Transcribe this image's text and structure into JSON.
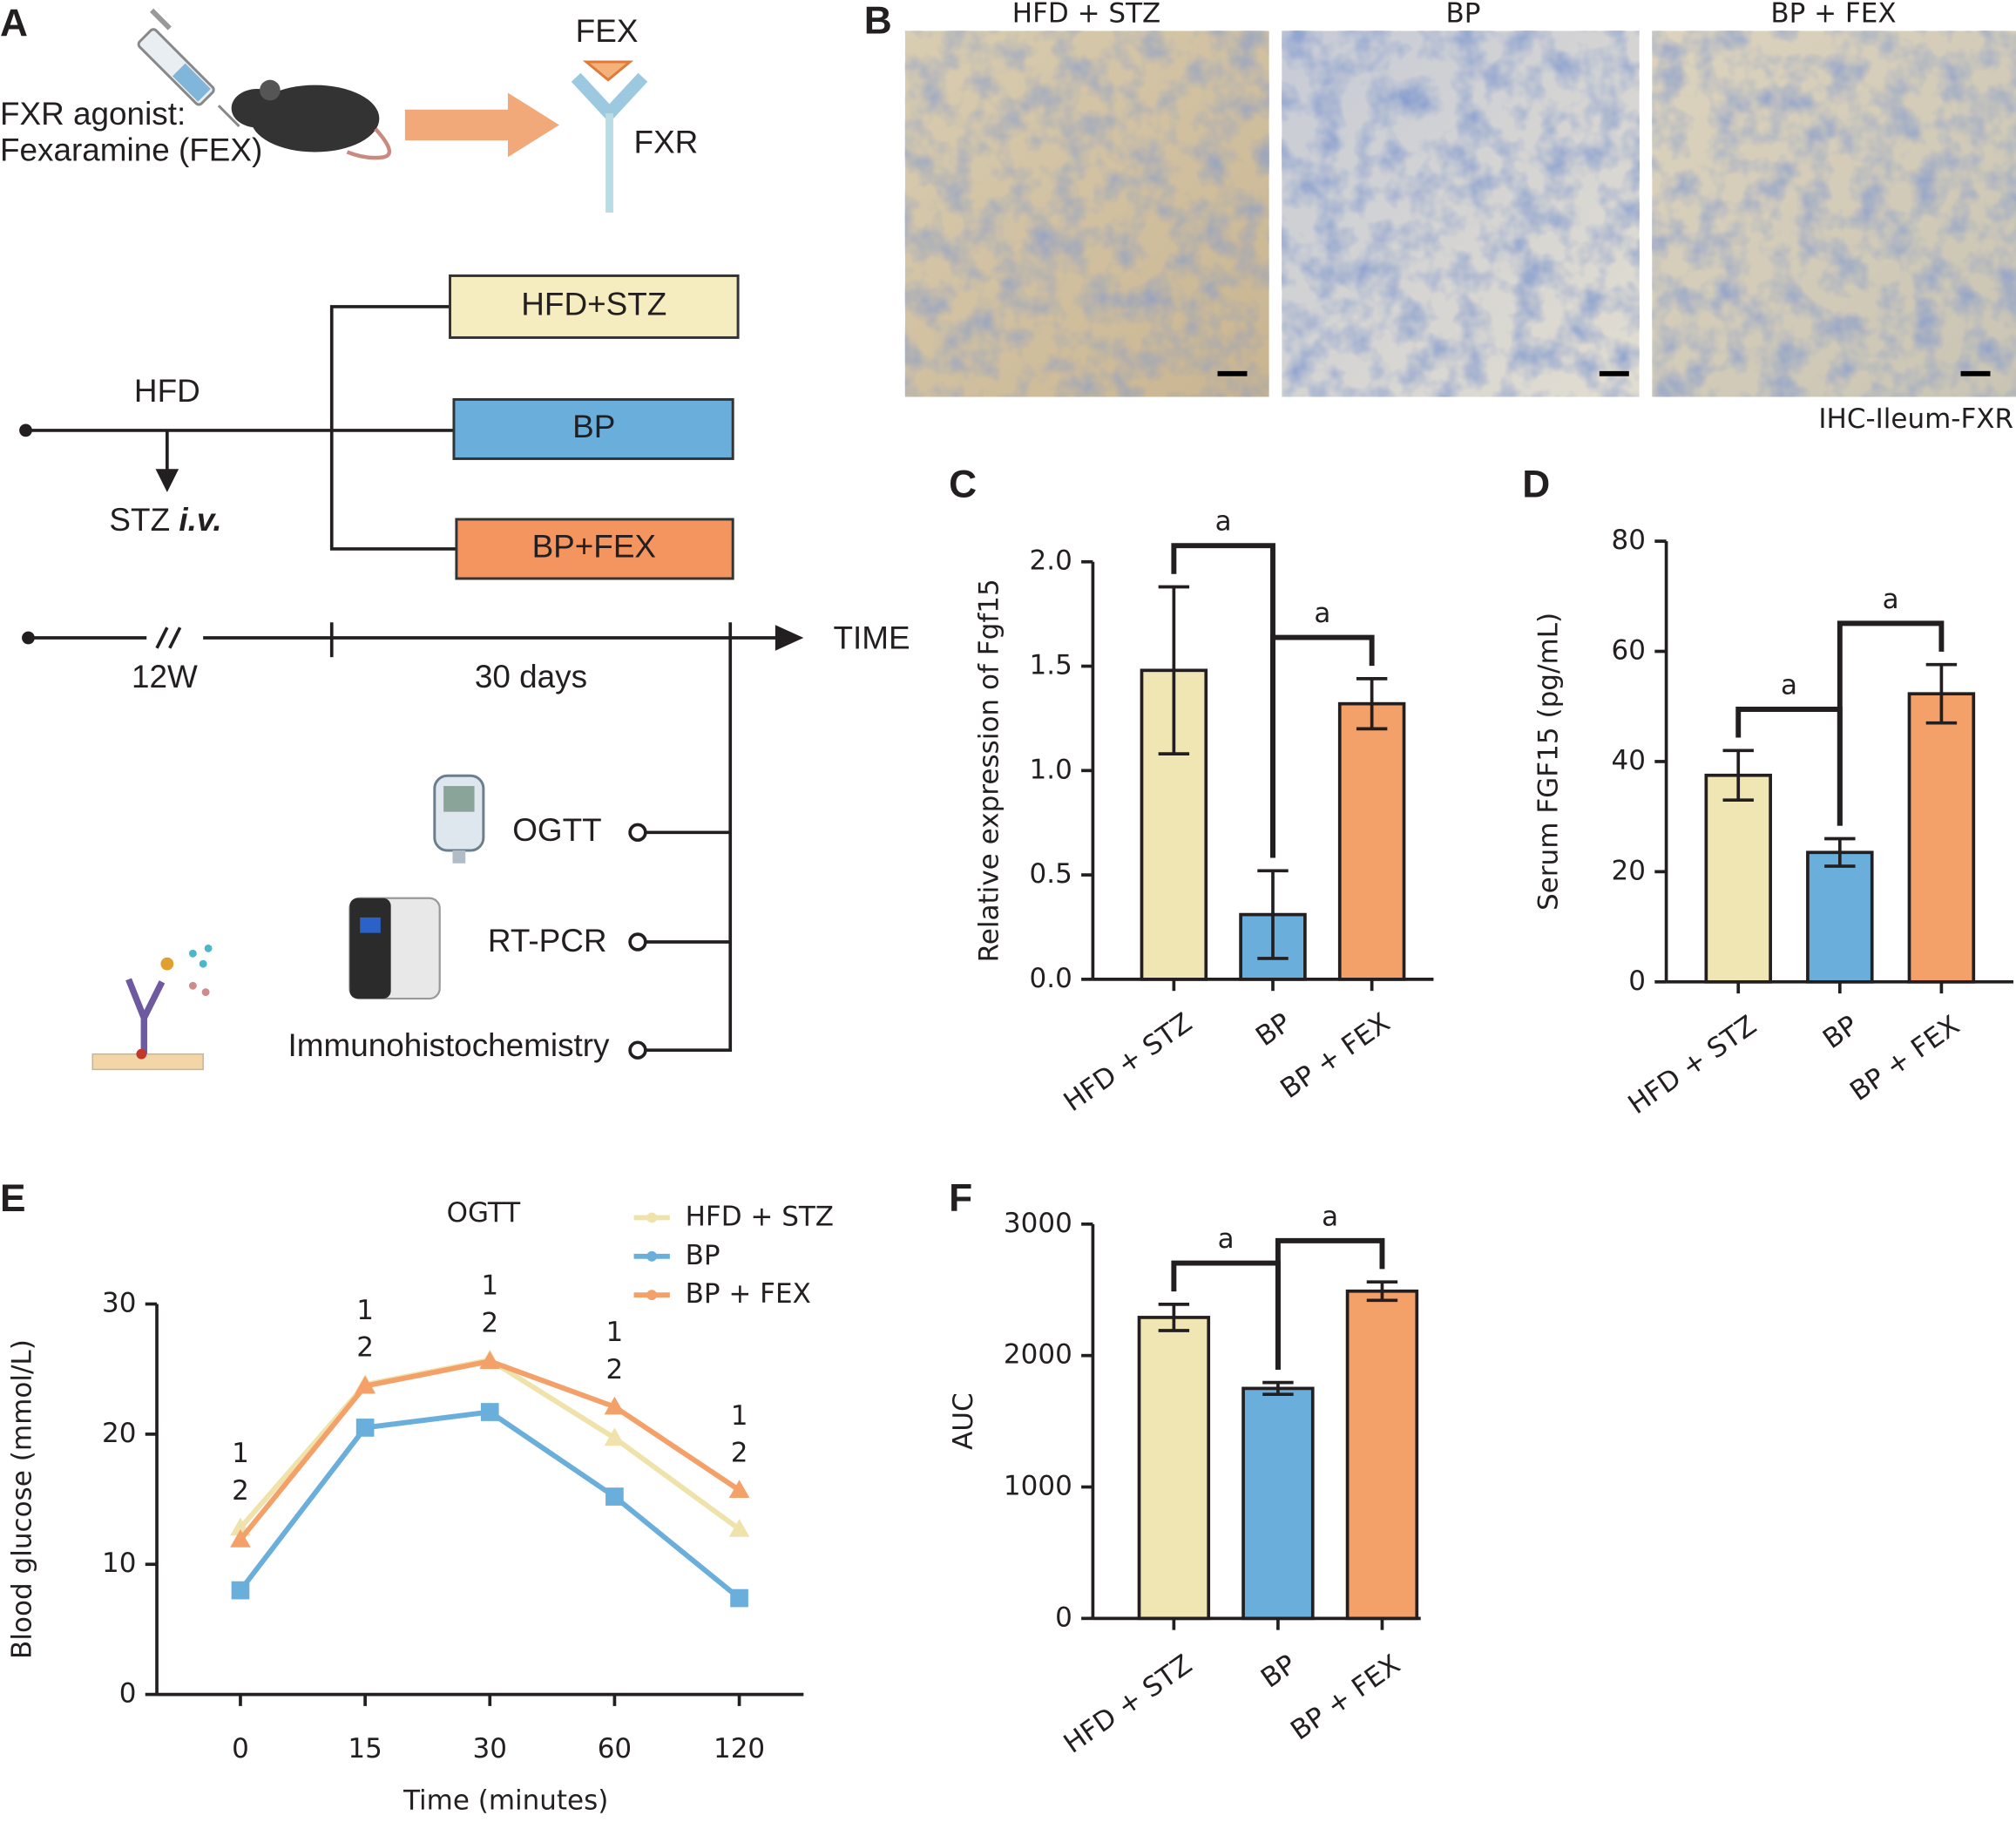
{
  "panel_labels": [
    "A",
    "B",
    "C",
    "D",
    "E",
    "F"
  ],
  "diagram": {
    "agonist": "FXR agonist:",
    "agonist_name": "Fexaramine (FEX)",
    "ligand": "FEX",
    "receptor": "FXR",
    "groups": [
      "HFD+STZ",
      "BP",
      "BP+FEX"
    ],
    "diet": "HFD",
    "injection": "STZ",
    "route": "i.v.",
    "time": "TIME",
    "period1": "12W",
    "period2": "30 days",
    "assays": [
      "OGTT",
      "RT-PCR",
      "Immunohistochemistry"
    ]
  },
  "histology": {
    "panels": [
      "HFD + STZ",
      "BP",
      "BP + FEX"
    ],
    "caption": "IHC-Ileum-FXR"
  },
  "chart_data": [
    {
      "type": "bar",
      "y_label": "Relative expression of Fgf15",
      "categories": [
        "HFD + STZ",
        "BP",
        "BP + FEX"
      ],
      "values": [
        1.48,
        0.31,
        1.32
      ],
      "errors": [
        0.4,
        0.21,
        0.12
      ],
      "colors": [
        "#efe6b4",
        "#6aaedb",
        "#f4a169"
      ],
      "ylim": [
        0,
        2
      ],
      "yticks": [
        {
          "value": 0,
          "label": "0.0"
        },
        0.5,
        {
          "value": 1,
          "label": "1.0"
        },
        1.5,
        {
          "value": 2,
          "label": "2.0"
        }
      ],
      "brackets": [
        {
          "from": 0,
          "to": 1,
          "label": "a"
        },
        {
          "from": 1,
          "to": 2,
          "label": "a"
        }
      ]
    },
    {
      "type": "bar",
      "y_label": "Serum FGF15 (pg/mL)",
      "categories": [
        "HFD + STZ",
        "BP",
        "BP + FEX"
      ],
      "values": [
        37.5,
        23.5,
        52.3
      ],
      "errors": [
        4.5,
        2.5,
        5.3
      ],
      "colors": [
        "#efe6b4",
        "#6aaedb",
        "#f4a169"
      ],
      "ylim": [
        0,
        80
      ],
      "yticks": [
        0,
        20,
        40,
        60,
        80
      ],
      "brackets": [
        {
          "from": 0,
          "to": 1,
          "label": "a"
        },
        {
          "from": 1,
          "to": 2,
          "label": "a"
        }
      ]
    },
    {
      "type": "line",
      "title": "OGTT",
      "x_label": "Time (minutes)",
      "y_label": "Blood glucose (mmol/L)",
      "categories": [
        "0",
        "15",
        "30",
        "60",
        "120"
      ],
      "ylim": [
        0,
        30
      ],
      "yticks": [
        0,
        10,
        20,
        30
      ],
      "series": [
        {
          "name": "HFD + STZ",
          "color": "#efe3ab",
          "values": [
            12.8,
            23.8,
            25.7,
            19.7,
            12.7
          ]
        },
        {
          "name": "BP",
          "color": "#6aaedb",
          "values": [
            8.0,
            20.5,
            21.7,
            15.2,
            7.4
          ]
        },
        {
          "name": "BP + FEX",
          "color": "#f4a169",
          "values": [
            11.9,
            23.7,
            25.6,
            22.1,
            15.7
          ]
        }
      ],
      "annotations": [
        {
          "index": 0,
          "labels": [
            "1",
            "2"
          ]
        },
        {
          "index": 1,
          "labels": [
            "1",
            "2"
          ]
        },
        {
          "index": 2,
          "labels": [
            "1",
            "2"
          ]
        },
        {
          "index": 3,
          "labels": [
            "1",
            "2"
          ]
        },
        {
          "index": 4,
          "labels": [
            "1",
            "2"
          ]
        }
      ]
    },
    {
      "type": "bar",
      "y_label": "AUC",
      "categories": [
        "HFD + STZ",
        "BP",
        "BP + FEX"
      ],
      "values": [
        2290,
        1750,
        2490
      ],
      "errors": [
        100,
        45,
        70
      ],
      "colors": [
        "#efe6b4",
        "#6aaedb",
        "#f4a169"
      ],
      "ylim": [
        0,
        3000
      ],
      "yticks": [
        0,
        1000,
        2000,
        3000
      ],
      "brackets": [
        {
          "from": 0,
          "to": 1,
          "label": "a"
        },
        {
          "from": 1,
          "to": 2,
          "label": "a"
        }
      ]
    }
  ]
}
